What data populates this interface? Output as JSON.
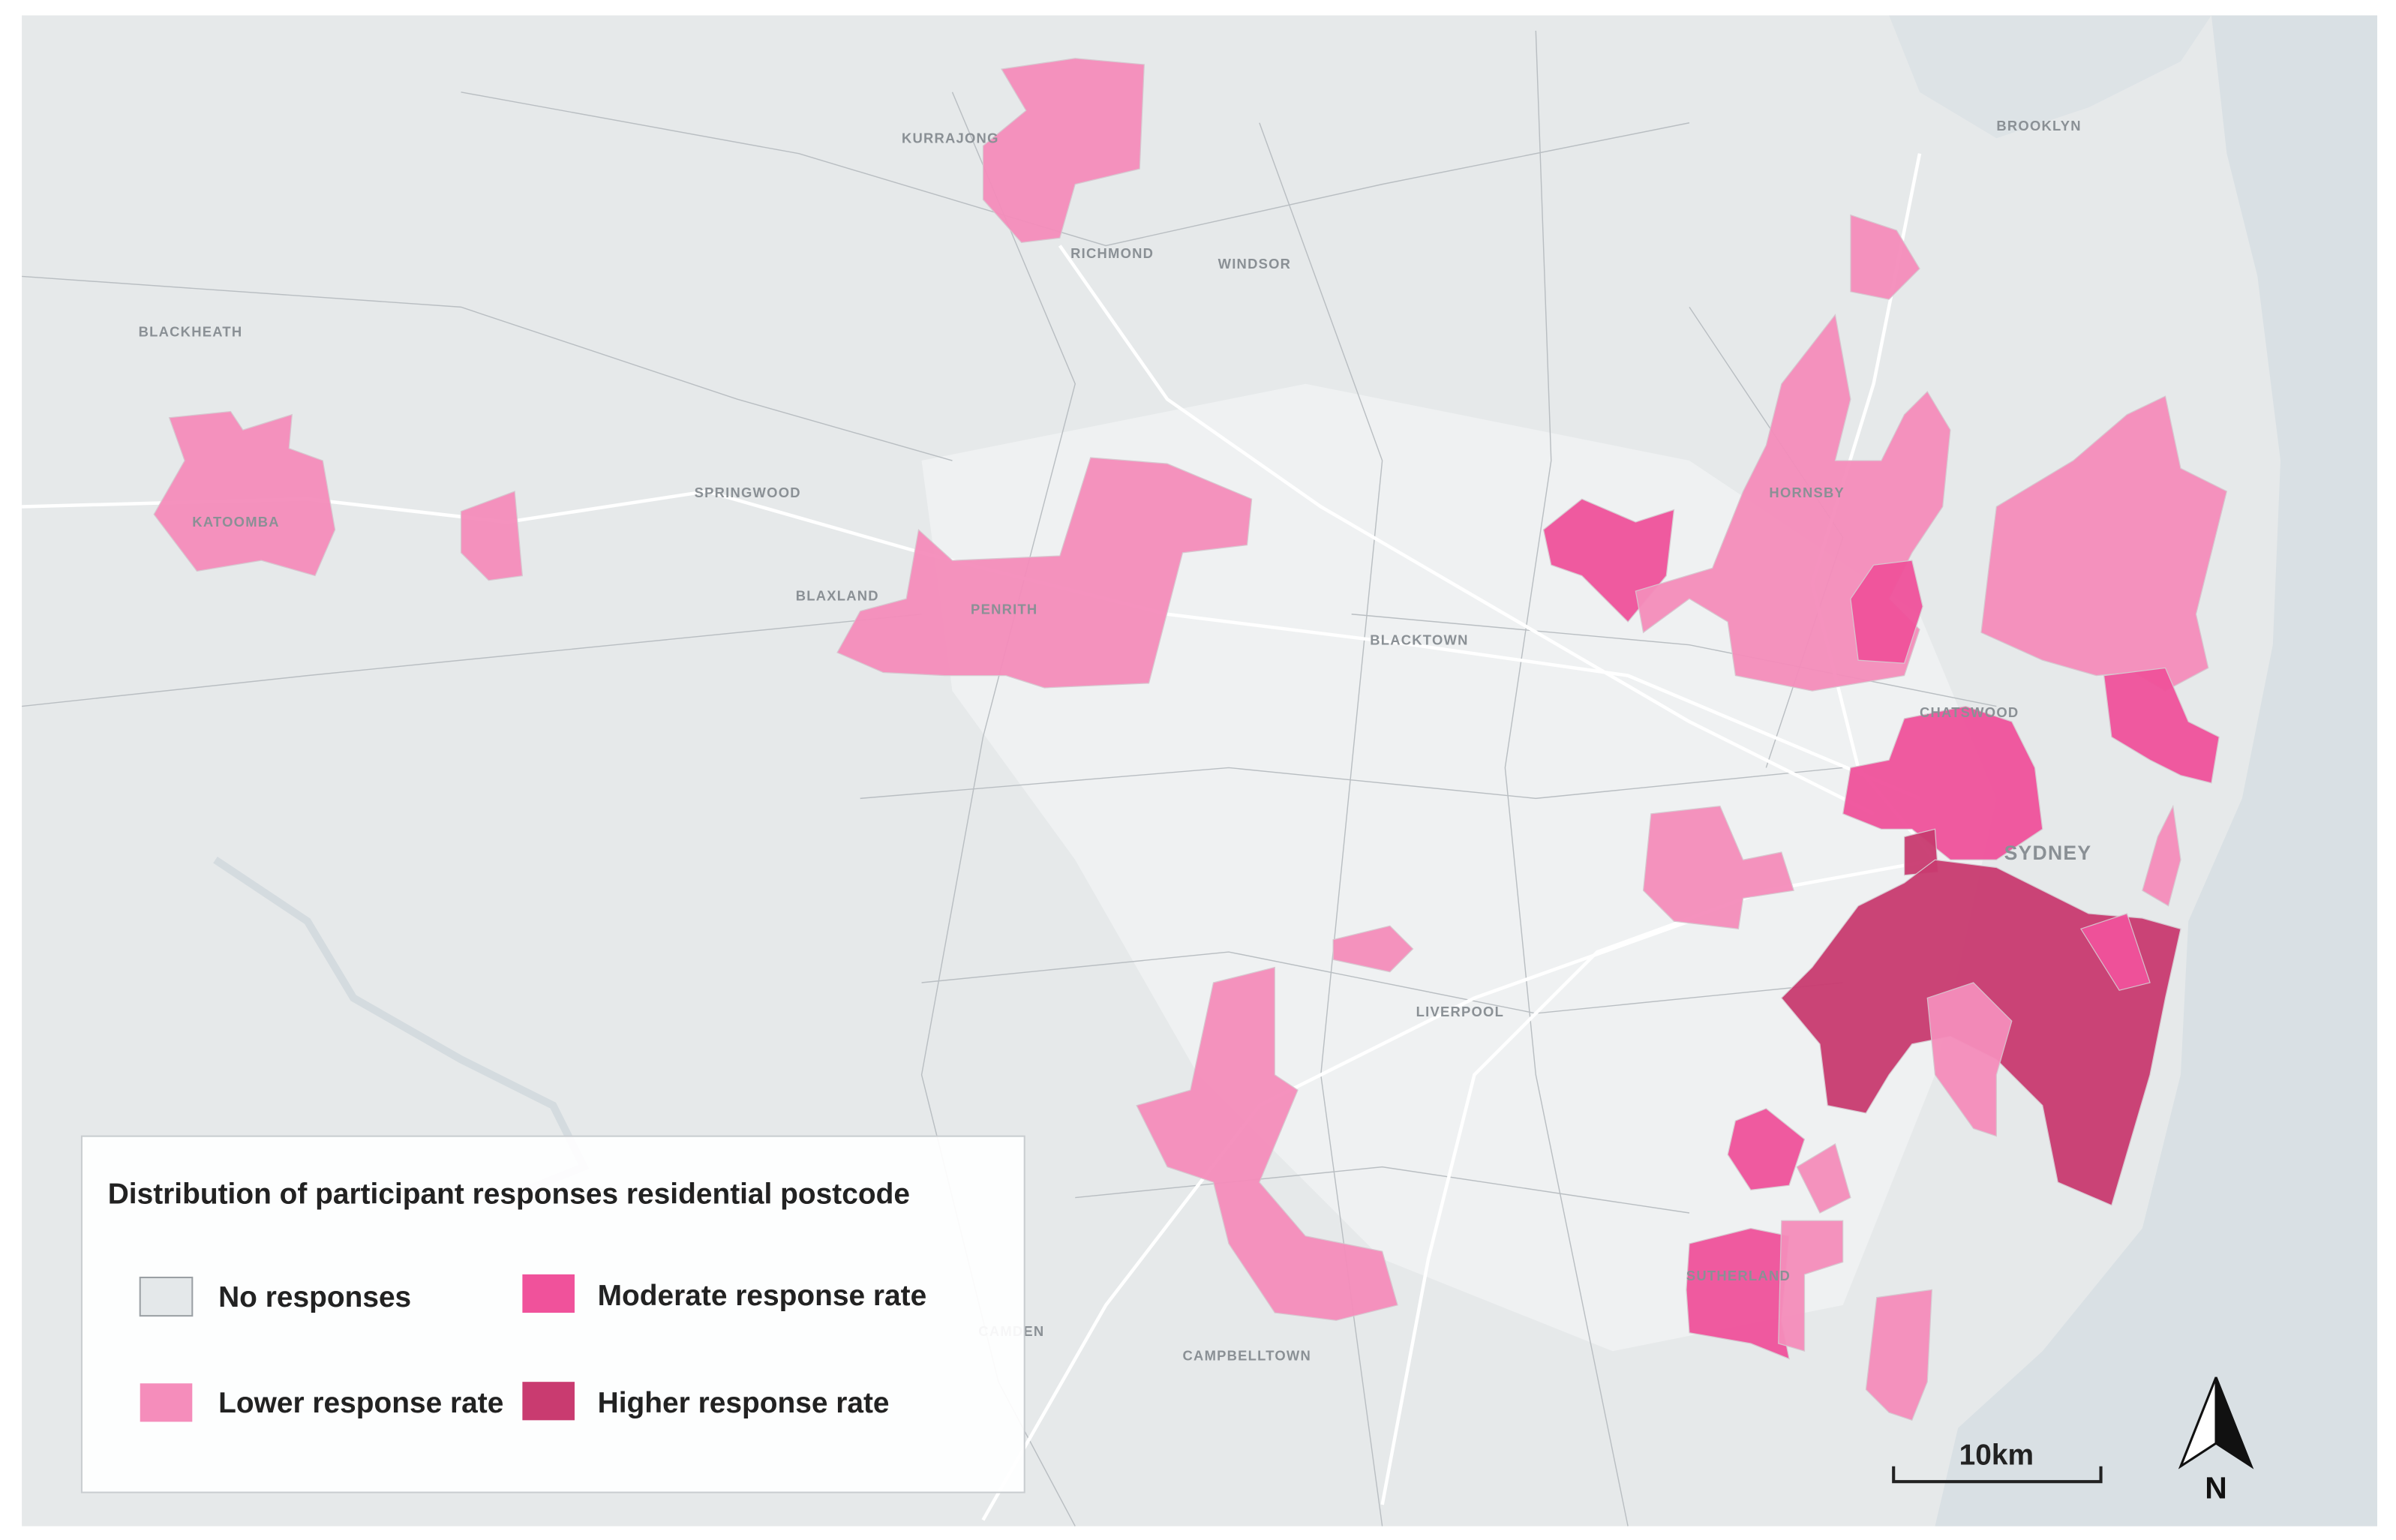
{
  "legend": {
    "title": "Distribution of participant responses residential postcode",
    "items": [
      {
        "name": "No responses",
        "color": "#e4e8ea"
      },
      {
        "name": "Moderate response rate",
        "color": "#f0529b"
      },
      {
        "name": "Lower response rate",
        "color": "#f58dbb"
      },
      {
        "name": "Higher response rate",
        "color": "#c93b70"
      }
    ]
  },
  "places": [
    "KURRAJONG",
    "RICHMOND",
    "WINDSOR",
    "BLACKHEATH",
    "SPRINGWOOD",
    "KATOOMBA",
    "BLAXLAND",
    "PENRITH",
    "HORNSBY",
    "BLACKTOWN",
    "CHATSWOOD",
    "SYDNEY",
    "LIVERPOOL",
    "CAMDEN",
    "CAMPBELLTOWN",
    "SUTHERLAND",
    "BROOKLYN"
  ],
  "scale_bar": {
    "label": "10km"
  },
  "north_arrow": {
    "label": "N"
  }
}
